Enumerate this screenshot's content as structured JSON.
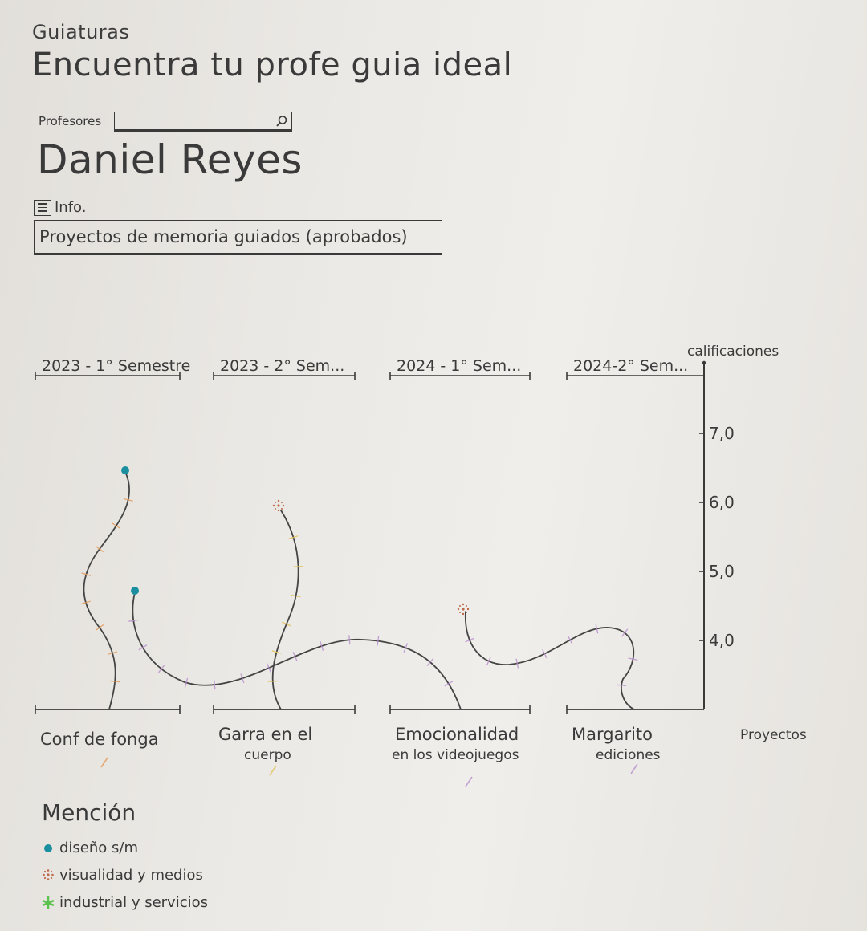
{
  "app": {
    "name": "Guiaturas",
    "title": "Encuentra tu profe guia ideal"
  },
  "search": {
    "label": "Profesores",
    "value": "",
    "placeholder": "",
    "icon": "search-icon"
  },
  "profile": {
    "name": "Daniel Reyes"
  },
  "info": {
    "icon": "menu-icon",
    "label": "Info."
  },
  "selector": {
    "value": "Proyectos de memoria guiados (aprobados)"
  },
  "colors": {
    "ink": "#3a3a3a",
    "diseno": "#1b8fa0",
    "visualidad": "#c0694a",
    "industrial": "#5cc24e",
    "tick_orange": "#e39a5a",
    "tick_yellow": "#e2c25a",
    "tick_pink": "#b990cd"
  },
  "legend": {
    "title": "Mención",
    "items": [
      {
        "label": "diseño s/m",
        "mark": "dot",
        "color_key": "diseno"
      },
      {
        "label": "visualidad y medios",
        "mark": "burst",
        "color_key": "visualidad"
      },
      {
        "label": "industrial y servicios",
        "mark": "star",
        "color_key": "industrial"
      }
    ]
  },
  "chart_data": {
    "type": "line",
    "x_labels_top": [
      "2023 - 1° Semestre",
      "2023 - 2° Sem...",
      "2024 - 1° Sem...",
      "2024-2° Sem..."
    ],
    "x_labels_bottom": [
      [
        "Conf de fonga"
      ],
      [
        "Garra en el",
        "cuerpo"
      ],
      [
        "Emocionalidad",
        "en los videojuegos"
      ],
      [
        "Margarito",
        "ediciones"
      ]
    ],
    "xlabel": "Proyectos",
    "ylabel": "calificaciones",
    "y_ticks": [
      "7,0",
      "6,0",
      "5,0",
      "4,0"
    ],
    "y_tick_values": [
      7.0,
      6.0,
      5.0,
      4.0
    ],
    "ylim": [
      3.0,
      7.0
    ]
  }
}
